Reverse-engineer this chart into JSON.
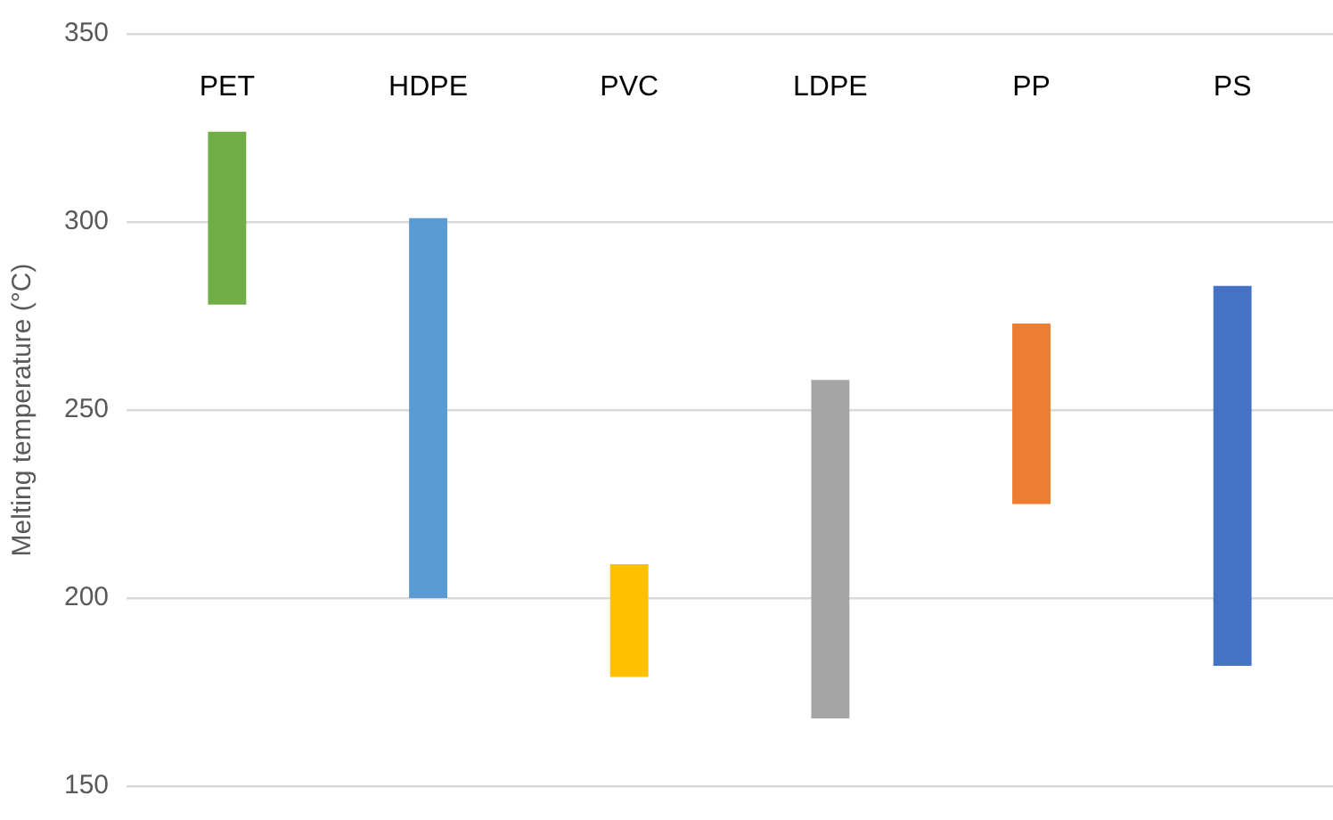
{
  "chart_data": {
    "type": "bar",
    "ylabel": "Melting temperature (°C)",
    "categories": [
      "PET",
      "HDPE",
      "PVC",
      "LDPE",
      "PP",
      "PS"
    ],
    "base": [
      278,
      200,
      179,
      168,
      225,
      182
    ],
    "values": [
      46,
      101,
      30,
      90,
      48,
      101
    ],
    "colors": [
      "#70ad47",
      "#5b9bd5",
      "#ffc000",
      "#a5a5a5",
      "#ed7d31",
      "#4472c4"
    ],
    "ylim": [
      150,
      350
    ],
    "yticks": [
      150,
      200,
      250,
      300,
      350
    ],
    "grid": "y",
    "legend": false
  }
}
